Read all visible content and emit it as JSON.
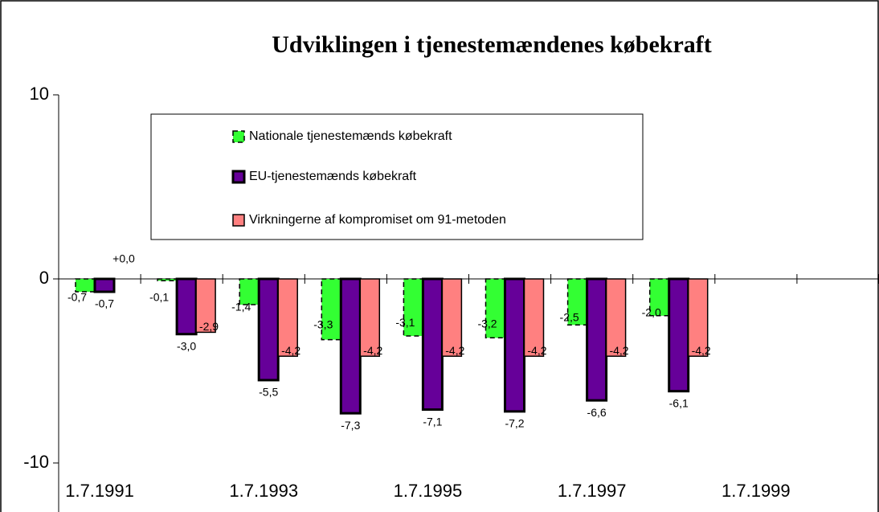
{
  "chart_data": {
    "type": "bar",
    "title": "Udviklingen i tjenestemændenes købekraft",
    "categories": [
      "1.7.1991",
      null,
      "1.7.1993",
      null,
      "1.7.1995",
      null,
      "1.7.1997",
      null,
      "1.7.1999",
      null
    ],
    "series": [
      {
        "name": "Nationale tjenestemænds købekraft",
        "color": "#33ff33",
        "values": [
          -0.7,
          -0.1,
          -1.4,
          -3.3,
          -3.1,
          -3.2,
          -2.5,
          -2.0,
          null,
          null
        ],
        "value_labels": [
          "-0,7",
          "-0,1",
          "-1,4",
          "-3,3",
          "-3,1",
          "-3,2",
          "-2,5",
          "-2,0",
          null,
          null
        ]
      },
      {
        "name": "EU-tjenestemænds købekraft",
        "color": "#660099",
        "values": [
          -0.7,
          -3.0,
          -5.5,
          -7.3,
          -7.1,
          -7.2,
          -6.6,
          -6.1,
          null,
          null
        ],
        "value_labels": [
          "-0,7",
          "-3,0",
          "-5,5",
          "-7,3",
          "-7,1",
          "-7,2",
          "-6,6",
          "-6,1",
          null,
          null
        ]
      },
      {
        "name": "Virkningerne af kompromiset om 91-metoden",
        "color": "#ff8080",
        "values": [
          0.0,
          -2.9,
          -4.2,
          -4.2,
          -4.2,
          -4.2,
          -4.2,
          -4.2,
          null,
          null
        ],
        "value_labels": [
          "+0,0",
          "-2,9",
          "-4,2",
          "-4,2",
          "-4,2",
          "-4,2",
          "-4,2",
          "-4,2",
          null,
          null
        ]
      }
    ],
    "ylim": [
      -10,
      10
    ],
    "yticks": [
      -10,
      0,
      10
    ],
    "legend": "top-left"
  }
}
